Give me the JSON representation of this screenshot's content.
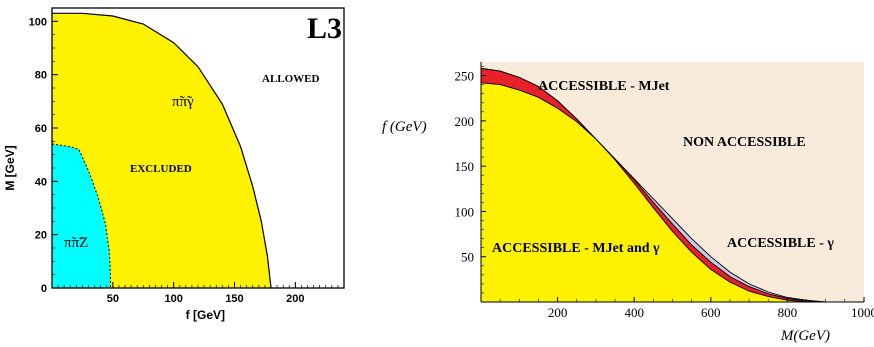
{
  "colors": {
    "yellow": "#fff200",
    "cyan": "#00ffff",
    "red": "#e8202a",
    "lavender": "#c8c8e6",
    "beige": "#f8ebdc",
    "black": "#000000"
  },
  "chart_data": [
    {
      "type": "area",
      "title": "L3",
      "xlabel": "f [GeV]",
      "ylabel": "M [GeV]",
      "xlim": [
        0,
        240
      ],
      "ylim": [
        0,
        105
      ],
      "xticks": [
        "50",
        "100",
        "150",
        "200"
      ],
      "yticks": [
        "0",
        "20",
        "40",
        "60",
        "80",
        "100"
      ],
      "grid": false,
      "regions": [
        {
          "name": "π̃π̃γ",
          "label": "π̃π̃γ",
          "fill": "yellow",
          "boundary": [
            [
              0,
              103
            ],
            [
              25,
              103
            ],
            [
              50,
              102
            ],
            [
              75,
              99
            ],
            [
              100,
              92
            ],
            [
              120,
              83
            ],
            [
              140,
              69
            ],
            [
              155,
              53
            ],
            [
              165,
              38
            ],
            [
              172,
              25
            ],
            [
              177,
              12
            ],
            [
              180,
              0
            ]
          ]
        },
        {
          "name": "π̃π̃Z",
          "label": "π̃π̃Z",
          "fill": "cyan",
          "boundary": [
            [
              0,
              54
            ],
            [
              15,
              53
            ],
            [
              22,
              52
            ],
            [
              30,
              44
            ],
            [
              38,
              34
            ],
            [
              44,
              24
            ],
            [
              47,
              14
            ],
            [
              48,
              6
            ],
            [
              48,
              0
            ]
          ]
        }
      ],
      "annotations": [
        "ALLOWED",
        "EXCLUDED"
      ]
    },
    {
      "type": "area",
      "xlabel": "M(GeV)",
      "ylabel": "f (GeV)",
      "xlim": [
        0,
        1000
      ],
      "ylim": [
        0,
        265
      ],
      "xticks": [
        "200",
        "400",
        "600",
        "800",
        "1000"
      ],
      "yticks": [
        "50",
        "100",
        "150",
        "200",
        "250"
      ],
      "grid": false,
      "curves": [
        {
          "name": "upper",
          "points": [
            [
              0,
              258
            ],
            [
              50,
              255
            ],
            [
              100,
              248
            ],
            [
              150,
              238
            ],
            [
              200,
              222
            ],
            [
              250,
              202
            ],
            [
              300,
              180
            ],
            [
              350,
              158
            ],
            [
              400,
              136
            ],
            [
              450,
              114
            ],
            [
              500,
              92
            ],
            [
              550,
              70
            ],
            [
              600,
              50
            ],
            [
              650,
              33
            ],
            [
              700,
              20
            ],
            [
              750,
              11
            ],
            [
              800,
              5
            ],
            [
              850,
              2
            ],
            [
              900,
              0
            ],
            [
              950,
              0
            ]
          ]
        },
        {
          "name": "middle",
          "points": [
            [
              0,
              258
            ],
            [
              50,
              255
            ],
            [
              100,
              248
            ],
            [
              150,
              238
            ],
            [
              200,
              222
            ],
            [
              250,
              202
            ],
            [
              300,
              180
            ],
            [
              350,
              158
            ],
            [
              400,
              135
            ],
            [
              450,
              110
            ],
            [
              500,
              86
            ],
            [
              550,
              63
            ],
            [
              600,
              44
            ],
            [
              650,
              28
            ],
            [
              700,
              17
            ],
            [
              750,
              9
            ],
            [
              800,
              4
            ],
            [
              850,
              1
            ],
            [
              900,
              0
            ]
          ]
        },
        {
          "name": "lower",
          "points": [
            [
              0,
              242
            ],
            [
              50,
              240
            ],
            [
              100,
              234
            ],
            [
              150,
              226
            ],
            [
              200,
              214
            ],
            [
              250,
              199
            ],
            [
              300,
              180
            ],
            [
              350,
              157
            ],
            [
              400,
              131
            ],
            [
              450,
              104
            ],
            [
              500,
              78
            ],
            [
              550,
              55
            ],
            [
              600,
              36
            ],
            [
              650,
              22
            ],
            [
              700,
              12
            ],
            [
              750,
              6
            ],
            [
              800,
              2
            ],
            [
              850,
              0
            ]
          ]
        }
      ],
      "annotations": [
        "ACCESSIBLE - MJet",
        "NON ACCESSIBLE",
        "ACCESSIBLE - MJet and γ",
        "ACCESSIBLE - γ"
      ]
    }
  ]
}
